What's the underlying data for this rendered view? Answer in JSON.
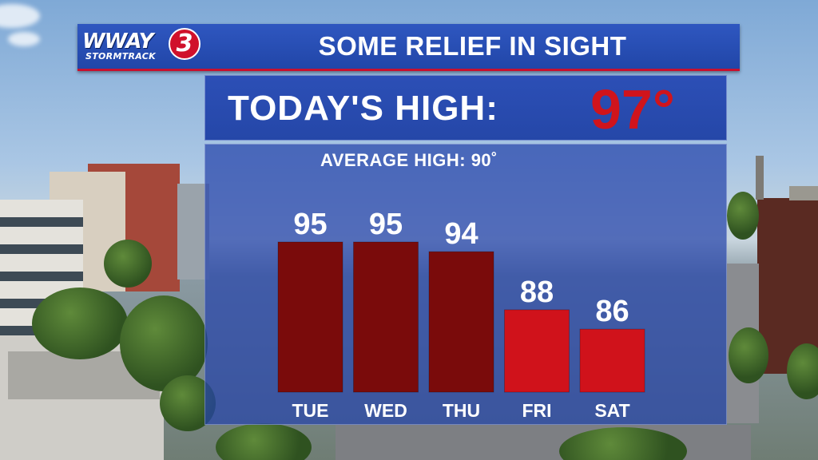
{
  "branding": {
    "station": "WWAY",
    "sub": "STORMTRACK",
    "channel": "3"
  },
  "banner": {
    "title": "SOME RELIEF IN SIGHT"
  },
  "today": {
    "label": "TODAY'S HIGH:",
    "value": "97°"
  },
  "average": {
    "label": "AVERAGE HIGH: 90˚"
  },
  "colors": {
    "banner_blue": "#2146a8",
    "dark_bar": "#7a0b0b",
    "red_bar": "#d0121b",
    "today_red": "#d0141c"
  },
  "chart_data": {
    "type": "bar",
    "categories": [
      "TUE",
      "WED",
      "THU",
      "FRI",
      "SAT"
    ],
    "values": [
      95,
      95,
      94,
      88,
      86
    ],
    "value_labels": [
      "95",
      "95",
      "94",
      "88",
      "86"
    ],
    "bar_colors": [
      "#7a0b0b",
      "#7a0b0b",
      "#7a0b0b",
      "#d0121b",
      "#d0121b"
    ],
    "title": "",
    "xlabel": "",
    "ylabel": "",
    "grid": false,
    "legend": "none"
  }
}
